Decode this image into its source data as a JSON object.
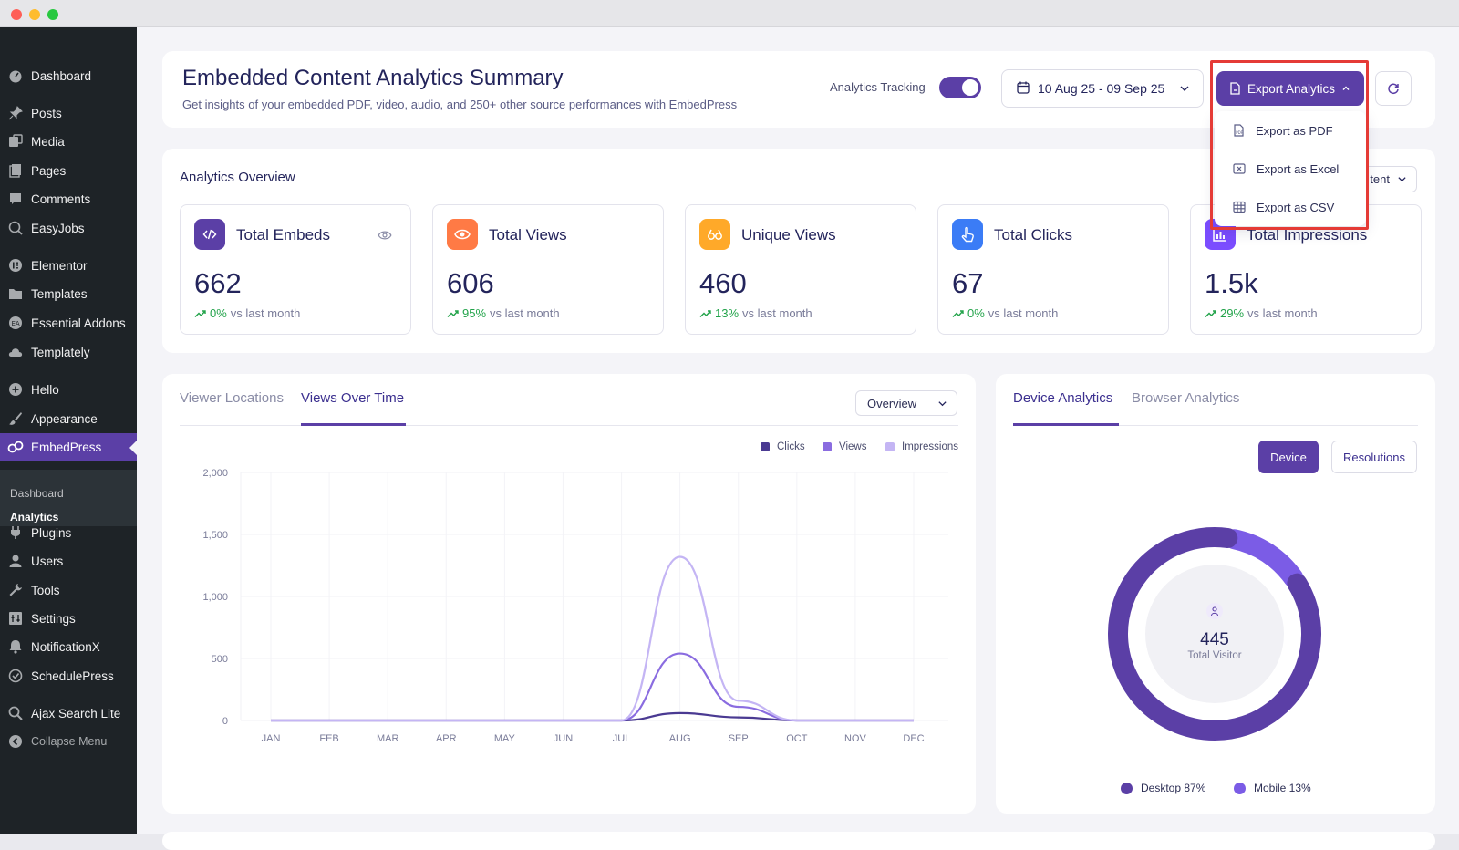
{
  "colors": {
    "accent": "#5b3fa6",
    "sidebar_bg": "#1e2327",
    "positive": "#22a34a",
    "highlight": "#e53b36"
  },
  "sidebar": {
    "items": [
      {
        "label": "Dashboard",
        "icon": "dashboard-icon"
      },
      {
        "label": "Posts",
        "icon": "pin-icon"
      },
      {
        "label": "Media",
        "icon": "media-icon"
      },
      {
        "label": "Pages",
        "icon": "pages-icon"
      },
      {
        "label": "Comments",
        "icon": "comment-icon"
      },
      {
        "label": "EasyJobs",
        "icon": "easyjobs-icon"
      },
      {
        "label": "Elementor",
        "icon": "elementor-icon"
      },
      {
        "label": "Templates",
        "icon": "folder-icon"
      },
      {
        "label": "Essential Addons",
        "icon": "ea-icon"
      },
      {
        "label": "Templately",
        "icon": "templately-icon"
      },
      {
        "label": "Hello",
        "icon": "plus-circle-icon"
      },
      {
        "label": "Appearance",
        "icon": "brush-icon"
      },
      {
        "label": "EmbedPress",
        "icon": "embedpress-icon"
      },
      {
        "label": "Plugins",
        "icon": "plugin-icon"
      },
      {
        "label": "Users",
        "icon": "user-icon"
      },
      {
        "label": "Tools",
        "icon": "wrench-icon"
      },
      {
        "label": "Settings",
        "icon": "settings-icon"
      },
      {
        "label": "NotificationX",
        "icon": "notificationx-icon"
      },
      {
        "label": "SchedulePress",
        "icon": "schedulepress-icon"
      },
      {
        "label": "Ajax Search Lite",
        "icon": "search-icon"
      },
      {
        "label": "Collapse Menu",
        "icon": "collapse-icon"
      }
    ],
    "submenu": [
      "Dashboard",
      "Analytics"
    ]
  },
  "header": {
    "title": "Embedded Content Analytics Summary",
    "subtitle": "Get insights of your embedded PDF, video, audio, and 250+ other source performances with EmbedPress",
    "tracking_label": "Analytics Tracking",
    "date_range": "10 Aug 25 - 09 Sep 25",
    "export_label": "Export Analytics",
    "export_menu": [
      "Export as PDF",
      "Export as Excel",
      "Export as CSV"
    ]
  },
  "overview": {
    "title": "Analytics Overview",
    "filter_partial": "tent",
    "stats": [
      {
        "label": "Total Embeds",
        "value": "662",
        "pct": "0%",
        "suffix": "vs last month",
        "color": "#5b3fa6"
      },
      {
        "label": "Total Views",
        "value": "606",
        "pct": "95%",
        "suffix": "vs last month",
        "color": "#ff7a45"
      },
      {
        "label": "Unique Views",
        "value": "460",
        "pct": "13%",
        "suffix": "vs last month",
        "color": "#ffa929"
      },
      {
        "label": "Total Clicks",
        "value": "67",
        "pct": "0%",
        "suffix": "vs last month",
        "color": "#3b7cf6"
      },
      {
        "label": "Total Impressions",
        "value": "1.5k",
        "pct": "29%",
        "suffix": "vs last month",
        "color": "#7b4dff"
      }
    ]
  },
  "views_panel": {
    "tabs": [
      "Viewer Locations",
      "Views Over Time"
    ],
    "select": "Overview",
    "legend": [
      "Clicks",
      "Views",
      "Impressions"
    ]
  },
  "device_panel": {
    "tabs": [
      "Device Analytics",
      "Browser Analytics"
    ],
    "buttons": [
      "Device",
      "Resolutions"
    ],
    "center_value": "445",
    "center_label": "Total Visitor",
    "legend": [
      "Desktop 87%",
      "Mobile 13%"
    ]
  },
  "chart_data": {
    "type": "line",
    "categories": [
      "JAN",
      "FEB",
      "MAR",
      "APR",
      "MAY",
      "JUN",
      "JUL",
      "AUG",
      "SEP",
      "OCT",
      "NOV",
      "DEC"
    ],
    "series": [
      {
        "name": "Clicks",
        "color": "#4a3a92",
        "values": [
          0,
          0,
          0,
          0,
          0,
          0,
          0,
          60,
          25,
          0,
          0,
          0
        ]
      },
      {
        "name": "Views",
        "color": "#8a6ce0",
        "values": [
          0,
          0,
          0,
          0,
          0,
          0,
          0,
          540,
          110,
          0,
          0,
          0
        ]
      },
      {
        "name": "Impressions",
        "color": "#c4b5f4",
        "values": [
          0,
          0,
          0,
          0,
          0,
          0,
          0,
          1320,
          160,
          0,
          0,
          0
        ]
      }
    ],
    "yticks": [
      "0",
      "500",
      "1,000",
      "1,500",
      "2,000"
    ],
    "ylim": [
      0,
      2000
    ],
    "title": "",
    "xlabel": "",
    "ylabel": ""
  },
  "device_chart": {
    "type": "pie",
    "labels": [
      "Desktop",
      "Mobile"
    ],
    "values": [
      87,
      13
    ],
    "colors": [
      "#5b3fa6",
      "#7b5ce6"
    ]
  }
}
